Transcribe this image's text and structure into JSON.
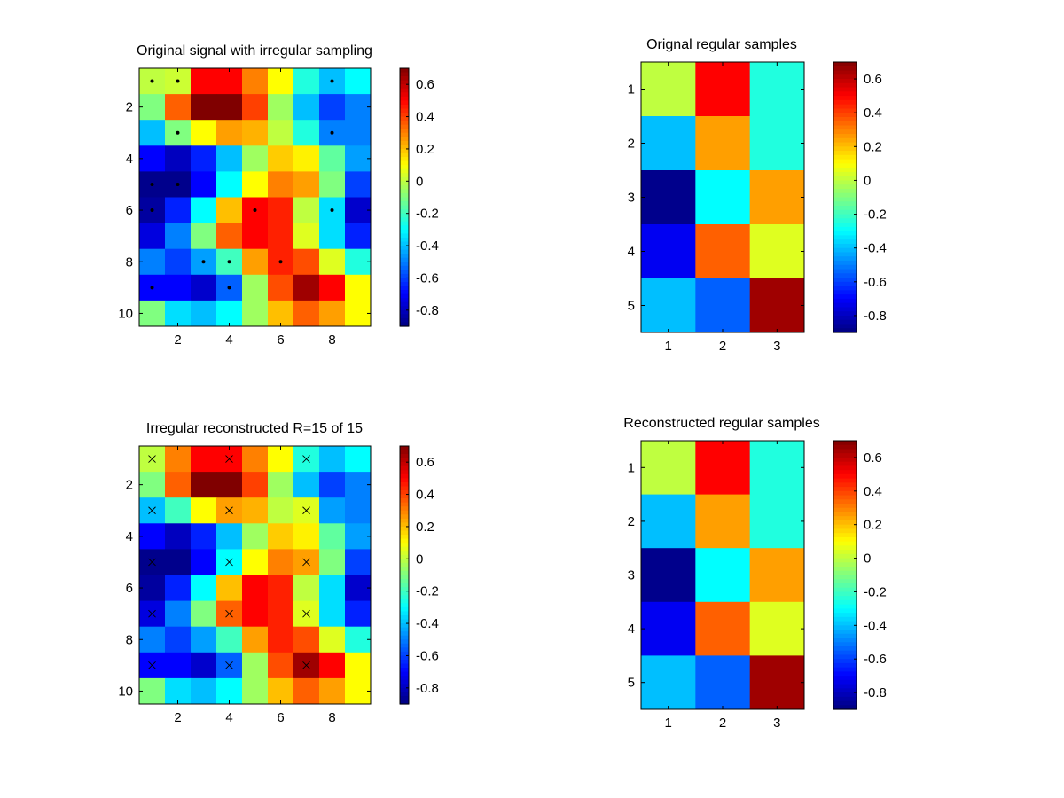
{
  "figure": {
    "background": "#ffffff"
  },
  "chart_data": [
    {
      "type": "heatmap",
      "title": "Original signal with irregular sampling",
      "colormap": "jet",
      "clim": [
        -0.9,
        0.7
      ],
      "colorbar_ticks": [
        -0.8,
        -0.6,
        -0.4,
        -0.2,
        0,
        0.2,
        0.4,
        0.6
      ],
      "x_ticks": [
        2,
        4,
        6,
        8
      ],
      "y_ticks": [
        2,
        4,
        6,
        8,
        10
      ],
      "values": [
        [
          0.0,
          0.02,
          0.5,
          0.5,
          0.3,
          0.1,
          -0.25,
          -0.4,
          -0.3
        ],
        [
          -0.1,
          0.35,
          0.7,
          0.7,
          0.4,
          -0.05,
          -0.4,
          -0.6,
          -0.5
        ],
        [
          -0.4,
          -0.1,
          0.1,
          0.25,
          0.22,
          0.0,
          -0.25,
          -0.5,
          -0.5
        ],
        [
          -0.7,
          -0.8,
          -0.65,
          -0.4,
          -0.05,
          0.18,
          0.12,
          -0.15,
          -0.45
        ],
        [
          -0.88,
          -0.88,
          -0.7,
          -0.3,
          0.1,
          0.3,
          0.25,
          -0.1,
          -0.6
        ],
        [
          -0.85,
          -0.65,
          -0.3,
          0.2,
          0.5,
          0.45,
          0.0,
          -0.35,
          -0.78
        ],
        [
          -0.75,
          -0.5,
          -0.1,
          0.35,
          0.5,
          0.45,
          0.05,
          -0.35,
          -0.65
        ],
        [
          -0.5,
          -0.6,
          -0.45,
          -0.2,
          0.25,
          0.45,
          0.38,
          0.05,
          -0.25
        ],
        [
          -0.7,
          -0.7,
          -0.78,
          -0.55,
          -0.05,
          0.38,
          0.65,
          0.5,
          0.1
        ],
        [
          -0.1,
          -0.35,
          -0.4,
          -0.3,
          -0.05,
          0.2,
          0.35,
          0.25,
          0.1
        ]
      ],
      "markers": {
        "symbol": "dot",
        "points": [
          [
            1,
            1
          ],
          [
            2,
            1
          ],
          [
            8,
            1
          ],
          [
            2,
            3
          ],
          [
            8,
            3
          ],
          [
            1,
            5
          ],
          [
            2,
            5
          ],
          [
            1,
            6
          ],
          [
            5,
            6
          ],
          [
            8,
            6
          ],
          [
            3,
            8
          ],
          [
            4,
            8
          ],
          [
            6,
            8
          ],
          [
            1,
            9
          ],
          [
            4,
            9
          ]
        ]
      }
    },
    {
      "type": "heatmap",
      "title": "Orignal regular samples",
      "colormap": "jet",
      "clim": [
        -0.9,
        0.7
      ],
      "colorbar_ticks": [
        -0.8,
        -0.6,
        -0.4,
        -0.2,
        0,
        0.2,
        0.4,
        0.6
      ],
      "x_ticks": [
        1,
        2,
        3
      ],
      "y_ticks": [
        1,
        2,
        3,
        4,
        5
      ],
      "values": [
        [
          0.0,
          0.5,
          -0.25
        ],
        [
          -0.4,
          0.25,
          -0.25
        ],
        [
          -0.88,
          -0.3,
          0.25
        ],
        [
          -0.72,
          0.35,
          0.05
        ],
        [
          -0.4,
          -0.55,
          0.65
        ]
      ]
    },
    {
      "type": "heatmap",
      "title": "Irregular reconstructed  R=15 of 15",
      "colormap": "jet",
      "clim": [
        -0.9,
        0.7
      ],
      "colorbar_ticks": [
        -0.8,
        -0.6,
        -0.4,
        -0.2,
        0,
        0.2,
        0.4,
        0.6
      ],
      "x_ticks": [
        2,
        4,
        6,
        8
      ],
      "y_ticks": [
        2,
        4,
        6,
        8,
        10
      ],
      "values": [
        [
          0.0,
          0.3,
          0.5,
          0.5,
          0.3,
          0.1,
          -0.25,
          -0.4,
          -0.3
        ],
        [
          -0.1,
          0.35,
          0.7,
          0.7,
          0.4,
          -0.05,
          -0.4,
          -0.6,
          -0.5
        ],
        [
          -0.4,
          -0.2,
          0.1,
          0.25,
          0.22,
          0.0,
          0.05,
          -0.45,
          -0.5
        ],
        [
          -0.7,
          -0.8,
          -0.65,
          -0.4,
          -0.05,
          0.18,
          0.12,
          -0.15,
          -0.45
        ],
        [
          -0.88,
          -0.88,
          -0.7,
          -0.3,
          0.1,
          0.3,
          0.25,
          -0.1,
          -0.6
        ],
        [
          -0.85,
          -0.65,
          -0.3,
          0.2,
          0.5,
          0.45,
          0.0,
          -0.35,
          -0.78
        ],
        [
          -0.75,
          -0.5,
          -0.1,
          0.35,
          0.5,
          0.45,
          0.05,
          -0.35,
          -0.65
        ],
        [
          -0.5,
          -0.6,
          -0.45,
          -0.2,
          0.25,
          0.45,
          0.38,
          0.05,
          -0.25
        ],
        [
          -0.7,
          -0.7,
          -0.78,
          -0.55,
          -0.05,
          0.38,
          0.65,
          0.5,
          0.1
        ],
        [
          -0.1,
          -0.35,
          -0.4,
          -0.3,
          -0.05,
          0.2,
          0.35,
          0.25,
          0.1
        ]
      ],
      "markers": {
        "symbol": "x",
        "points": [
          [
            1,
            1
          ],
          [
            4,
            1
          ],
          [
            7,
            1
          ],
          [
            1,
            3
          ],
          [
            4,
            3
          ],
          [
            7,
            3
          ],
          [
            1,
            5
          ],
          [
            4,
            5
          ],
          [
            7,
            5
          ],
          [
            1,
            7
          ],
          [
            4,
            7
          ],
          [
            7,
            7
          ],
          [
            1,
            9
          ],
          [
            4,
            9
          ],
          [
            7,
            9
          ]
        ]
      }
    },
    {
      "type": "heatmap",
      "title": "Reconstructed regular samples",
      "colormap": "jet",
      "clim": [
        -0.9,
        0.7
      ],
      "colorbar_ticks": [
        -0.8,
        -0.6,
        -0.4,
        -0.2,
        0,
        0.2,
        0.4,
        0.6
      ],
      "x_ticks": [
        1,
        2,
        3
      ],
      "y_ticks": [
        1,
        2,
        3,
        4,
        5
      ],
      "values": [
        [
          0.0,
          0.5,
          -0.25
        ],
        [
          -0.4,
          0.25,
          -0.25
        ],
        [
          -0.88,
          -0.3,
          0.25
        ],
        [
          -0.72,
          0.35,
          0.05
        ],
        [
          -0.4,
          -0.55,
          0.65
        ]
      ]
    }
  ]
}
